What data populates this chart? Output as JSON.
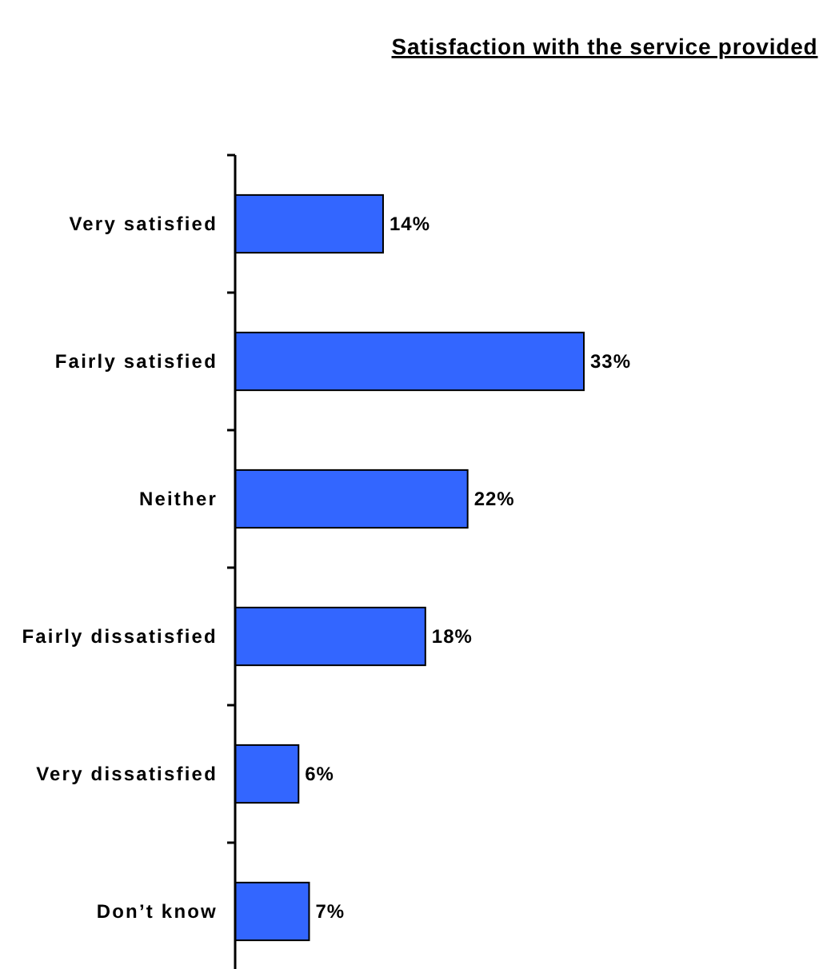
{
  "chart_data": {
    "type": "bar",
    "orientation": "horizontal",
    "title": "Satisfaction with the service provided",
    "categories": [
      "Very satisfied",
      "Fairly satisfied",
      "Neither",
      "Fairly dissatisfied",
      "Very dissatisfied",
      "Don’t know"
    ],
    "values": [
      14,
      33,
      22,
      18,
      6,
      7
    ],
    "value_labels": [
      "14%",
      "33%",
      "22%",
      "18%",
      "6%",
      "7%"
    ],
    "color": "#3366ff",
    "tick_labels": "y"
  }
}
